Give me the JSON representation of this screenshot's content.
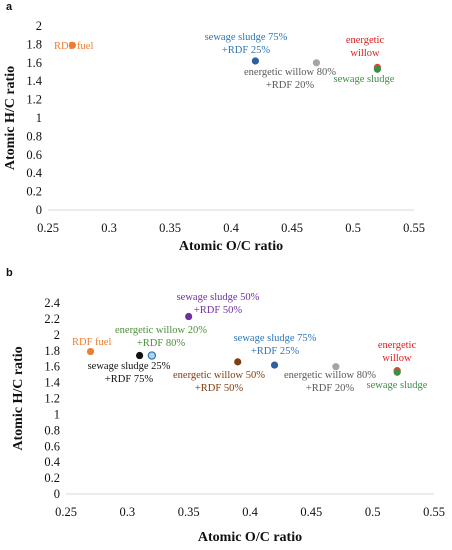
{
  "chart_data": [
    {
      "type": "scatter",
      "panel": "a",
      "xlabel": "Atomic O/C ratio",
      "ylabel": "Atomic H/C ratio",
      "xlim": [
        0.25,
        0.55
      ],
      "ylim": [
        0,
        2
      ],
      "xticks": [
        "0.25",
        "0.3",
        "0.35",
        "0.4",
        "0.45",
        "0.5",
        "0.55"
      ],
      "yticks": [
        "0",
        "0.2",
        "0.4",
        "0.6",
        "0.8",
        "1",
        "1.2",
        "1.4",
        "1.6",
        "1.8",
        "2"
      ],
      "grid": false,
      "points": [
        {
          "x": 0.27,
          "y": 1.79,
          "color": "#ed7d31"
        },
        {
          "x": 0.42,
          "y": 1.62,
          "color": "#2e5fa3"
        },
        {
          "x": 0.47,
          "y": 1.6,
          "color": "#a5a5a5"
        },
        {
          "x": 0.52,
          "y": 1.55,
          "color": "#e8403b"
        },
        {
          "x": 0.52,
          "y": 1.53,
          "color": "#3d8f44"
        }
      ],
      "annotations": [
        {
          "lines": [
            "RDF fuel"
          ],
          "color": "#ed7d31"
        },
        {
          "lines": [
            "sewage sludge 75%",
            "+RDF 25%"
          ],
          "color": "#2e75b6"
        },
        {
          "lines": [
            "energetic willow 80%",
            "+RDF 20%"
          ],
          "color": "#595959"
        },
        {
          "lines": [
            "energetic",
            "willow"
          ],
          "color": "#e02020"
        },
        {
          "lines": [
            "sewage sludge"
          ],
          "color": "#3d8f44"
        }
      ]
    },
    {
      "type": "scatter",
      "panel": "b",
      "xlabel": "Atomic O/C ratio",
      "ylabel": "Atomic H/C ratio",
      "xlim": [
        0.25,
        0.55
      ],
      "ylim": [
        0,
        2.4
      ],
      "xticks": [
        "0.25",
        "0.3",
        "0.35",
        "0.4",
        "0.45",
        "0.5",
        "0.55"
      ],
      "yticks": [
        "0",
        "0.2",
        "0.4",
        "0.6",
        "0.8",
        "1",
        "1.2",
        "1.4",
        "1.6",
        "1.8",
        "2",
        "2.2",
        "2.4"
      ],
      "grid": false,
      "points": [
        {
          "x": 0.27,
          "y": 1.79,
          "color": "#ed7d31"
        },
        {
          "x": 0.31,
          "y": 1.74,
          "color": "#111111"
        },
        {
          "x": 0.32,
          "y": 1.74,
          "color": "#b4d2e8",
          "stroke": "#2e75b6"
        },
        {
          "x": 0.35,
          "y": 2.23,
          "color": "#7030a0"
        },
        {
          "x": 0.39,
          "y": 1.66,
          "color": "#7f3f10"
        },
        {
          "x": 0.42,
          "y": 1.62,
          "color": "#2e5fa3"
        },
        {
          "x": 0.47,
          "y": 1.6,
          "color": "#a5a5a5"
        },
        {
          "x": 0.52,
          "y": 1.55,
          "color": "#e8403b"
        },
        {
          "x": 0.52,
          "y": 1.53,
          "color": "#3d8f44"
        }
      ],
      "annotations": [
        {
          "lines": [
            "RDF fuel"
          ],
          "color": "#ed7d31"
        },
        {
          "lines": [
            "sewage sludge 25%",
            "+RDF 75%"
          ],
          "color": "#111111"
        },
        {
          "lines": [
            "energetic willow 20%",
            "+RDF 80%"
          ],
          "color": "#4e8f3a"
        },
        {
          "lines": [
            "sewage sludge 50%",
            "+RDF 50%"
          ],
          "color": "#7030a0"
        },
        {
          "lines": [
            "energetic willow 50%",
            "+RDF 50%"
          ],
          "color": "#843c0c"
        },
        {
          "lines": [
            "sewage sludge 75%",
            "+RDF 25%"
          ],
          "color": "#2e75b6"
        },
        {
          "lines": [
            "energetic willow 80%",
            "+RDF 20%"
          ],
          "color": "#595959"
        },
        {
          "lines": [
            "energetic",
            "willow"
          ],
          "color": "#e02020"
        },
        {
          "lines": [
            "sewage sludge"
          ],
          "color": "#3d8f44"
        }
      ]
    }
  ]
}
